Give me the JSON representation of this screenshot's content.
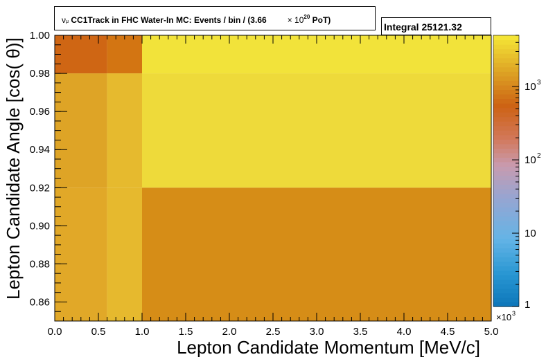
{
  "chart_data": {
    "type": "heatmap",
    "title": {
      "particle": "ν",
      "particle_sub": "μ",
      "main": "CC1Track in FHC Water-In MC: Events / bin / (3.66",
      "times": "× 10",
      "exponent": "20",
      "suffix": "PoT)"
    },
    "stats_label": "Integral",
    "stats_value": "25121.32",
    "xlabel": "Lepton Candidate Momentum [MeV/c]",
    "ylabel": "Lepton Candidate Angle [cos(  θ)]",
    "x_multiplier": "×10",
    "x_multiplier_exp": "3",
    "xlim": [
      0.0,
      5.0
    ],
    "ylim": [
      0.85,
      1.0
    ],
    "x_ticks": [
      "0.0",
      "0.5",
      "1.0",
      "1.5",
      "2.0",
      "2.5",
      "3.0",
      "3.5",
      "4.0",
      "4.5",
      "5.0"
    ],
    "y_ticks": [
      "0.86",
      "0.88",
      "0.90",
      "0.92",
      "0.94",
      "0.96",
      "0.98",
      "1.00"
    ],
    "x_bin_edges": [
      0.0,
      0.6,
      1.0,
      5.0
    ],
    "y_bin_edges": [
      0.85,
      0.92,
      0.98,
      1.0
    ],
    "bins": [
      {
        "x": [
          0.0,
          0.6
        ],
        "y": [
          0.98,
          1.0
        ],
        "color": "#cf6614"
      },
      {
        "x": [
          0.6,
          1.0
        ],
        "y": [
          0.98,
          1.0
        ],
        "color": "#d37512"
      },
      {
        "x": [
          1.0,
          5.0
        ],
        "y": [
          0.98,
          1.0
        ],
        "color": "#f2e33a"
      },
      {
        "x": [
          0.0,
          0.6
        ],
        "y": [
          0.92,
          0.98
        ],
        "color": "#dea426"
      },
      {
        "x": [
          0.6,
          1.0
        ],
        "y": [
          0.92,
          0.98
        ],
        "color": "#e6ba2e"
      },
      {
        "x": [
          1.0,
          5.0
        ],
        "y": [
          0.92,
          0.98
        ],
        "color": "#eeda3a"
      },
      {
        "x": [
          0.0,
          0.6
        ],
        "y": [
          0.85,
          0.92
        ],
        "color": "#e1a828"
      },
      {
        "x": [
          0.6,
          1.0
        ],
        "y": [
          0.85,
          0.92
        ],
        "color": "#e6b92e"
      },
      {
        "x": [
          1.0,
          5.0
        ],
        "y": [
          0.85,
          0.92
        ],
        "color": "#d68d17"
      }
    ],
    "colorbar": {
      "scale": "log",
      "range": [
        1,
        5000
      ],
      "labels": [
        {
          "value": 1,
          "text": "1"
        },
        {
          "value": 10,
          "text": "10"
        },
        {
          "value": 100,
          "base": "10",
          "exp": "2"
        },
        {
          "value": 1000,
          "base": "10",
          "exp": "3"
        }
      ]
    },
    "grid": false,
    "legend": "none"
  }
}
